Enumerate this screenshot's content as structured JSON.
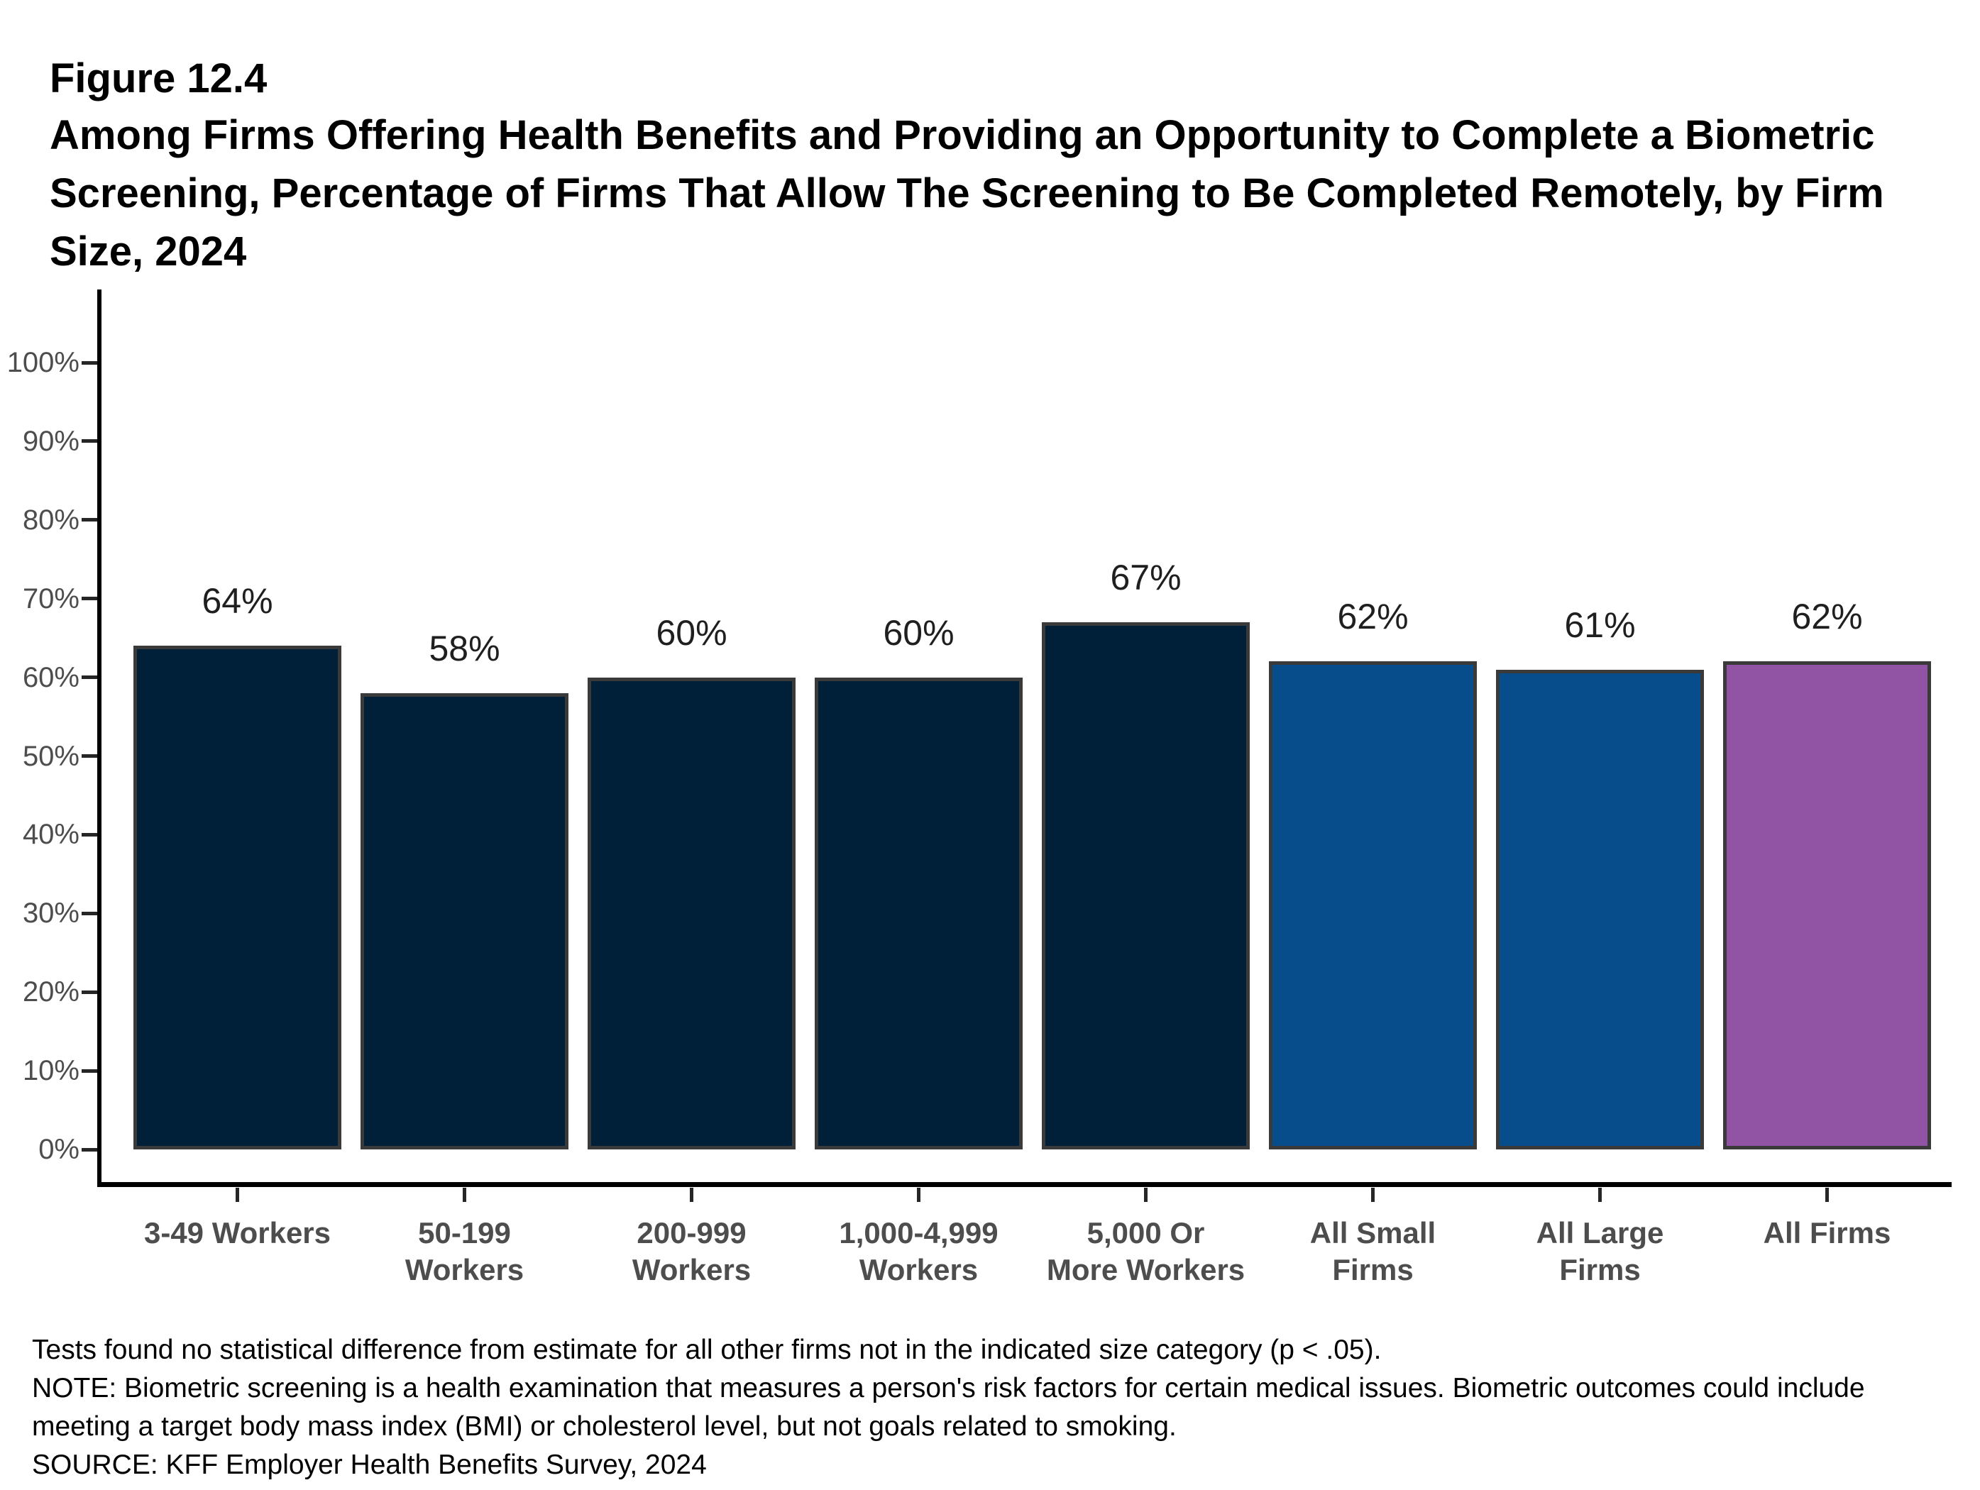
{
  "page": {
    "figure_label": "Figure 12.4",
    "title_lines": [
      "Among Firms Offering Health Benefits and Providing an Opportunity to Complete a Biometric",
      "Screening, Percentage of Firms That Allow The Screening to Be Completed Remotely, by Firm",
      "Size, 2024"
    ]
  },
  "chart_data": {
    "type": "bar",
    "title": "Among Firms Offering Health Benefits and Providing an Opportunity to Complete a Biometric Screening, Percentage of Firms That Allow The Screening to Be Completed Remotely, by Firm Size, 2024",
    "categories": [
      "3-49 Workers",
      "50-199 Workers",
      "200-999 Workers",
      "1,000-4,999 Workers",
      "5,000 Or More Workers",
      "All Small Firms",
      "All Large Firms",
      "All Firms"
    ],
    "category_lines": [
      [
        "3-49 Workers"
      ],
      [
        "50-199",
        "Workers"
      ],
      [
        "200-999",
        "Workers"
      ],
      [
        "1,000-4,999",
        "Workers"
      ],
      [
        "5,000 Or",
        "More Workers"
      ],
      [
        "All Small",
        "Firms"
      ],
      [
        "All Large",
        "Firms"
      ],
      [
        "All Firms"
      ]
    ],
    "values": [
      64,
      58,
      60,
      60,
      67,
      62,
      61,
      62
    ],
    "value_labels": [
      "64%",
      "58%",
      "60%",
      "60%",
      "67%",
      "62%",
      "61%",
      "62%"
    ],
    "y_ticks": [
      "0%",
      "10%",
      "20%",
      "30%",
      "40%",
      "50%",
      "60%",
      "70%",
      "80%",
      "90%",
      "100%"
    ],
    "ylim": [
      0,
      100
    ],
    "xlabel": "",
    "ylabel": "",
    "grid": false,
    "legend": "none",
    "bar_colors": [
      "#001F38",
      "#001F38",
      "#001F38",
      "#001F38",
      "#001F38",
      "#084D8B",
      "#084D8B",
      "#9153A3"
    ],
    "bar_border_color": "#3A3A3A",
    "axis_color": "#000000",
    "tick_color": "#262626",
    "tick_label_color": "#4D4D4D",
    "value_label_color": "#1F1F1F"
  },
  "notes": {
    "stat_note": "Tests found no statistical difference from estimate for all other firms not in the indicated size category (p < .05).",
    "note": "NOTE: Biometric screening is a health examination that measures a person's risk factors for certain medical issues. Biometric outcomes could include meeting a target body mass index (BMI) or cholesterol level, but not goals related to smoking.",
    "note_lines": [
      "NOTE: Biometric screening is a health examination that measures a person's risk factors for certain medical issues. Biometric outcomes could include",
      "meeting a target body mass index (BMI) or cholesterol level, but not goals related to smoking."
    ],
    "source": "SOURCE: KFF Employer Health Benefits Survey, 2024"
  }
}
